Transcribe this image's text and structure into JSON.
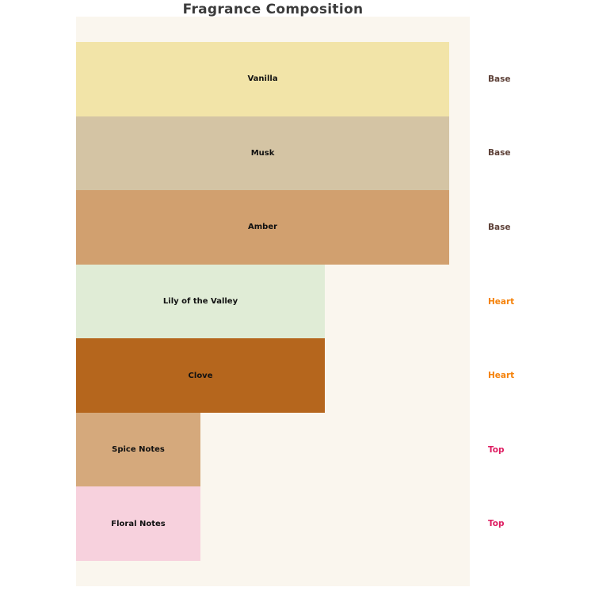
{
  "page": {
    "background": "#ffffff"
  },
  "chart_data": {
    "type": "bar",
    "orientation": "horizontal",
    "title": "Fragrance Composition",
    "title_color": "#3b3b3b",
    "plot_background": "#faf6ee",
    "xlim": [
      0,
      3.165
    ],
    "grid": false,
    "legend": "none",
    "axes_visible": false,
    "bars": [
      {
        "label": "Vanilla",
        "value": 3,
        "color": "#f2e4a8",
        "group": "Base"
      },
      {
        "label": "Musk",
        "value": 3,
        "color": "#d4c4a4",
        "group": "Base"
      },
      {
        "label": "Amber",
        "value": 3,
        "color": "#d1a06f",
        "group": "Base"
      },
      {
        "label": "Lily of the Valley",
        "value": 2,
        "color": "#e0ecd6",
        "group": "Heart"
      },
      {
        "label": "Clove",
        "value": 2,
        "color": "#b5661d",
        "group": "Heart"
      },
      {
        "label": "Spice Notes",
        "value": 1,
        "color": "#d5a97c",
        "group": "Top"
      },
      {
        "label": "Floral Notes",
        "value": 1,
        "color": "#f7d1dd",
        "group": "Top"
      }
    ],
    "group_colors": {
      "Base": "#5d4037",
      "Heart": "#f5820a",
      "Top": "#de1b60"
    },
    "bar_label_color": "#111111"
  }
}
